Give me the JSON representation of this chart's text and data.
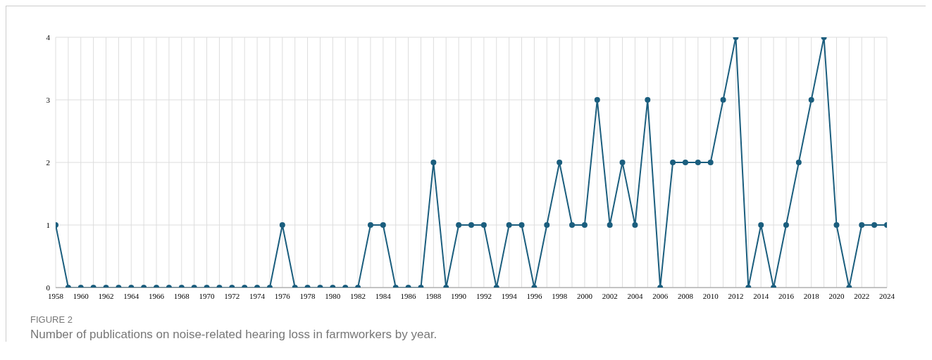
{
  "chart_data": {
    "type": "line",
    "title": "FIGURE 2",
    "subtitle": "Number of publications on noise-related hearing loss in farmworkers by year.",
    "x": [
      1958,
      1959,
      1960,
      1961,
      1962,
      1963,
      1964,
      1965,
      1966,
      1967,
      1968,
      1969,
      1970,
      1971,
      1972,
      1973,
      1974,
      1975,
      1976,
      1977,
      1978,
      1979,
      1980,
      1981,
      1982,
      1983,
      1984,
      1985,
      1986,
      1987,
      1988,
      1989,
      1990,
      1991,
      1992,
      1993,
      1994,
      1995,
      1996,
      1997,
      1998,
      1999,
      2000,
      2001,
      2002,
      2003,
      2004,
      2005,
      2006,
      2007,
      2008,
      2009,
      2010,
      2011,
      2012,
      2013,
      2014,
      2015,
      2016,
      2017,
      2018,
      2019,
      2020,
      2021,
      2022,
      2023,
      2024
    ],
    "series": [
      {
        "color": "#1b5e7e",
        "values": [
          1,
          0,
          0,
          0,
          0,
          0,
          0,
          0,
          0,
          0,
          0,
          0,
          0,
          0,
          0,
          0,
          0,
          0,
          1,
          0,
          0,
          0,
          0,
          0,
          0,
          1,
          1,
          0,
          0,
          0,
          2,
          0,
          1,
          1,
          1,
          0,
          1,
          1,
          0,
          1,
          2,
          1,
          1,
          3,
          1,
          2,
          1,
          3,
          0,
          2,
          2,
          2,
          2,
          3,
          4,
          0,
          1,
          0,
          1,
          2,
          3,
          4,
          1,
          0,
          1,
          1,
          1
        ]
      }
    ],
    "xlim": [
      1958,
      2024
    ],
    "xticks": [
      1958,
      {
        "value": 1959,
        "label": null
      },
      1960,
      {
        "value": 1961,
        "label": null
      },
      1962,
      {
        "value": 1963,
        "label": null
      },
      1964,
      {
        "value": 1965,
        "label": null
      },
      1966,
      {
        "value": 1967,
        "label": null
      },
      1968,
      {
        "value": 1969,
        "label": null
      },
      1970,
      {
        "value": 1971,
        "label": null
      },
      1972,
      {
        "value": 1973,
        "label": null
      },
      1974,
      {
        "value": 1975,
        "label": null
      },
      1976,
      {
        "value": 1977,
        "label": null
      },
      1978,
      {
        "value": 1979,
        "label": null
      },
      1980,
      {
        "value": 1981,
        "label": null
      },
      1982,
      {
        "value": 1983,
        "label": null
      },
      1984,
      {
        "value": 1985,
        "label": null
      },
      1986,
      {
        "value": 1987,
        "label": null
      },
      1988,
      {
        "value": 1989,
        "label": null
      },
      1990,
      {
        "value": 1991,
        "label": null
      },
      1992,
      {
        "value": 1993,
        "label": null
      },
      1994,
      {
        "value": 1995,
        "label": null
      },
      1996,
      {
        "value": 1997,
        "label": null
      },
      1998,
      {
        "value": 1999,
        "label": null
      },
      2000,
      {
        "value": 2001,
        "label": null
      },
      2002,
      {
        "value": 2003,
        "label": null
      },
      2004,
      {
        "value": 2005,
        "label": null
      },
      2006,
      {
        "value": 2007,
        "label": null
      },
      2008,
      {
        "value": 2009,
        "label": null
      },
      2010,
      {
        "value": 2011,
        "label": null
      },
      2012,
      {
        "value": 2013,
        "label": null
      },
      2014,
      {
        "value": 2015,
        "label": null
      },
      2016,
      {
        "value": 2017,
        "label": null
      },
      2018,
      {
        "value": 2019,
        "label": null
      },
      2020,
      {
        "value": 2021,
        "label": null
      },
      2022,
      {
        "value": 2023,
        "label": null
      },
      2024
    ],
    "ylim": [
      0,
      4
    ],
    "yticks": [
      0,
      1,
      2,
      3,
      4
    ],
    "grid": true,
    "marker": "circle",
    "line_style": "solid",
    "legend": false
  }
}
